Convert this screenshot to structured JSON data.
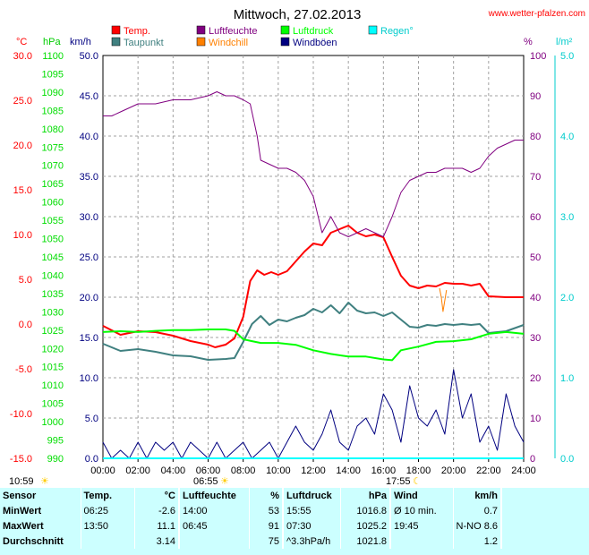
{
  "header": {
    "title": "Mittwoch, 27.02.2013",
    "site": "www.wetter-pfalzen.com"
  },
  "colors": {
    "temp": "#ff0000",
    "taupunkt": "#408080",
    "luftfeuchte": "#800080",
    "windchill": "#ff8000",
    "luftdruck": "#00ff00",
    "windboeen": "#000080",
    "regen": "#00ffff",
    "grid": "#a0a0a0"
  },
  "axes": {
    "temp_label": "°C",
    "hpa_label": "hPa",
    "kmh_label": "km/h",
    "pct_label": "%",
    "rain_label": "l/m²",
    "temp_ticks": [
      "30.0",
      "25.0",
      "20.0",
      "15.0",
      "10.0",
      "5.0",
      "0.0",
      "-5.0",
      "-10.0",
      "-15.0"
    ],
    "hpa_ticks": [
      "1100",
      "1095",
      "1090",
      "1085",
      "1080",
      "1075",
      "1070",
      "1065",
      "1060",
      "1055",
      "1050",
      "1045",
      "1040",
      "1035",
      "1030",
      "1025",
      "1020",
      "1015",
      "1010",
      "1005",
      "1000",
      "995",
      "990"
    ],
    "kmh_ticks": [
      "50.0",
      "45.0",
      "40.0",
      "35.0",
      "30.0",
      "25.0",
      "20.0",
      "15.0",
      "10.0",
      "5.0",
      "0.0"
    ],
    "pct_ticks": [
      "100",
      "90",
      "80",
      "70",
      "60",
      "50",
      "40",
      "30",
      "20",
      "10",
      "0"
    ],
    "rain_ticks": [
      "5.0",
      "4.0",
      "3.0",
      "2.0",
      "1.0",
      "0.0"
    ],
    "time_ticks": [
      "00:00",
      "02:00",
      "04:00",
      "06:00",
      "08:00",
      "10:00",
      "12:00",
      "14:00",
      "16:00",
      "18:00",
      "20:00",
      "22:00",
      "24:00"
    ]
  },
  "sun": {
    "daylength": "10:59",
    "sunrise": "06:55",
    "sunset": "17:55"
  },
  "legend": [
    {
      "label": "Temp.",
      "color": "#ff0000"
    },
    {
      "label": "Luftfeuchte",
      "color": "#800080"
    },
    {
      "label": "Luftdruck",
      "color": "#00ff00"
    },
    {
      "label": "Regen°",
      "color": "#00ffff"
    },
    {
      "label": "Taupunkt",
      "color": "#408080"
    },
    {
      "label": "Windchill",
      "color": "#ff8000"
    },
    {
      "label": "Windböen",
      "color": "#000080"
    }
  ],
  "chart_data": {
    "type": "line",
    "title": "Mittwoch, 27.02.2013",
    "xlim": [
      0,
      24
    ],
    "grid": true,
    "legend_position": "top",
    "series": [
      {
        "name": "Temp.",
        "axis": "°C",
        "ylim": [
          -15,
          30
        ],
        "x": [
          0,
          1,
          2,
          3,
          4,
          5,
          6,
          6.4,
          7,
          7.5,
          8,
          8.4,
          8.8,
          9.2,
          9.6,
          10,
          10.5,
          11,
          11.5,
          12,
          12.5,
          13,
          13.5,
          14,
          14.5,
          15,
          15.5,
          16,
          16.5,
          17,
          17.5,
          18,
          18.5,
          19,
          19.5,
          20,
          20.5,
          21,
          21.5,
          22,
          23,
          24
        ],
        "values": [
          -0.2,
          -1.2,
          -0.8,
          -0.9,
          -1.3,
          -1.9,
          -2.3,
          -2.6,
          -2.3,
          -1.6,
          0.8,
          4.8,
          6.0,
          5.5,
          5.8,
          5.5,
          5.9,
          7.0,
          8.1,
          9.0,
          8.8,
          10.2,
          10.6,
          11.0,
          10.2,
          9.8,
          10.0,
          9.7,
          7.5,
          5.4,
          4.3,
          4.0,
          4.3,
          4.2,
          4.6,
          4.5,
          4.5,
          4.3,
          4.5,
          3.1,
          3.0,
          3.0
        ]
      },
      {
        "name": "Taupunkt",
        "axis": "°C",
        "ylim": [
          -15,
          30
        ],
        "x": [
          0,
          1,
          2,
          3,
          4,
          5,
          6,
          7,
          7.5,
          8,
          8.5,
          9,
          9.5,
          10,
          10.5,
          11,
          11.5,
          12,
          12.5,
          13,
          13.5,
          14,
          14.5,
          15,
          15.5,
          16,
          16.5,
          17,
          17.5,
          18,
          18.5,
          19,
          19.5,
          20,
          20.5,
          21,
          21.5,
          22,
          23,
          24
        ],
        "values": [
          -2.2,
          -3.0,
          -2.8,
          -3.1,
          -3.5,
          -3.6,
          -4.0,
          -3.9,
          -3.8,
          -2.0,
          0.0,
          0.9,
          -0.1,
          0.5,
          0.3,
          0.7,
          1.0,
          1.7,
          1.3,
          2.1,
          1.2,
          2.4,
          1.5,
          1.2,
          1.3,
          0.9,
          1.3,
          0.5,
          -0.3,
          -0.4,
          -0.1,
          -0.2,
          0.0,
          -0.1,
          0.0,
          -0.1,
          0.0,
          -1.0,
          -0.8,
          -0.1
        ]
      },
      {
        "name": "Luftfeuchte",
        "axis": "%",
        "ylim": [
          0,
          100
        ],
        "x": [
          0,
          0.5,
          1,
          1.5,
          2,
          3,
          4,
          5,
          6,
          6.5,
          7,
          7.5,
          8,
          8.4,
          8.8,
          9,
          9.5,
          10,
          10.5,
          11,
          11.5,
          12,
          12.5,
          13,
          13.5,
          14,
          14.5,
          15,
          15.5,
          16,
          16.5,
          17,
          17.5,
          18,
          18.5,
          19,
          19.5,
          20,
          20.5,
          21,
          21.5,
          22,
          22.5,
          23,
          23.5,
          24
        ],
        "values": [
          85,
          85,
          86,
          87,
          88,
          88,
          89,
          89,
          90,
          91,
          90,
          90,
          89,
          88,
          80,
          74,
          73,
          72,
          72,
          71,
          69,
          65,
          56,
          60,
          56,
          55,
          56,
          57,
          56,
          55,
          60,
          66,
          69,
          70,
          71,
          71,
          72,
          72,
          72,
          71,
          72,
          75,
          77,
          78,
          79,
          79
        ]
      },
      {
        "name": "Luftdruck",
        "axis": "hPa",
        "ylim": [
          990,
          1100
        ],
        "x": [
          0,
          1,
          2,
          3,
          4,
          5,
          6,
          7,
          7.5,
          8,
          8.5,
          9,
          10,
          11,
          12,
          13,
          14,
          15,
          16,
          16.5,
          17,
          18,
          19,
          20,
          21,
          22,
          23,
          24
        ],
        "values": [
          1024.5,
          1024.7,
          1024.5,
          1024.8,
          1025.0,
          1025.0,
          1025.2,
          1025.2,
          1024.8,
          1022.5,
          1022.0,
          1021.5,
          1021.5,
          1021.0,
          1019.5,
          1018.5,
          1017.8,
          1017.8,
          1017.0,
          1016.8,
          1019.5,
          1020.5,
          1021.8,
          1022.0,
          1022.5,
          1024.0,
          1024.5,
          1024.0
        ]
      },
      {
        "name": "Windchill",
        "axis": "°C",
        "ylim": [
          -15,
          30
        ],
        "x": [
          19.2,
          19.3,
          19.4,
          19.6
        ],
        "values": [
          4.0,
          3.0,
          1.4,
          3.8
        ]
      },
      {
        "name": "Windböen",
        "axis": "km/h",
        "ylim": [
          0,
          50
        ],
        "x": [
          0,
          0.5,
          1,
          1.5,
          2,
          2.5,
          3,
          3.5,
          4,
          4.5,
          5,
          5.5,
          6,
          6.5,
          7,
          7.5,
          8,
          8.5,
          9,
          9.5,
          10,
          10.5,
          11,
          11.5,
          12,
          12.5,
          13,
          13.5,
          14,
          14.5,
          15,
          15.5,
          16,
          16.5,
          17,
          17.5,
          18,
          18.5,
          19,
          19.5,
          20,
          20.5,
          21,
          21.5,
          22,
          22.5,
          23,
          23.5,
          24
        ],
        "values": [
          2,
          0,
          1,
          0,
          2,
          0,
          2,
          1,
          2,
          0,
          2,
          1,
          0,
          2,
          0,
          1,
          2,
          0,
          1,
          2,
          0,
          2,
          4,
          2,
          1,
          3,
          6,
          2,
          1,
          4,
          5,
          3,
          8,
          6,
          2,
          9,
          5,
          4,
          6,
          3,
          11,
          5,
          8,
          2,
          4,
          1,
          8,
          4,
          2
        ]
      },
      {
        "name": "Regen°",
        "axis": "l/m²",
        "ylim": [
          0,
          5
        ],
        "x": [
          0,
          24
        ],
        "values": [
          0,
          0
        ]
      }
    ]
  },
  "stats": {
    "headers": [
      "Sensor",
      "Temp.",
      "°C",
      "Luftfeuchte",
      "%",
      "Luftdruck",
      "hPa",
      "Wind",
      "km/h"
    ],
    "rows": [
      [
        "MinWert",
        "06:25",
        "-2.6",
        "14:00",
        "53",
        "15:55",
        "1016.8",
        "Ø 10 min.",
        "0.7"
      ],
      [
        "MaxWert",
        "13:50",
        "11.1",
        "06:45",
        "91",
        "07:30",
        "1025.2",
        "19:45",
        "N-NO 8.6"
      ],
      [
        "Durchschnitt",
        "",
        "3.14",
        "",
        "75",
        "^3.3hPa/h",
        "1021.8",
        "",
        "1.2"
      ]
    ]
  }
}
